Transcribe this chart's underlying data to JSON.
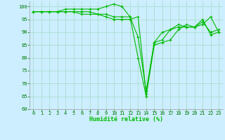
{
  "title": "",
  "xlabel": "Humidité relative (%)",
  "ylabel": "",
  "background_color": "#cceeff",
  "grid_color": "#aaddcc",
  "line_color": "#00bb00",
  "marker_color": "#00bb00",
  "xlim": [
    -0.5,
    23.5
  ],
  "ylim": [
    60,
    102
  ],
  "yticks": [
    60,
    65,
    70,
    75,
    80,
    85,
    90,
    95,
    100
  ],
  "xticks": [
    0,
    1,
    2,
    3,
    4,
    5,
    6,
    7,
    8,
    9,
    10,
    11,
    12,
    13,
    14,
    15,
    16,
    17,
    18,
    19,
    20,
    21,
    22,
    23
  ],
  "series": [
    [
      98,
      98,
      98,
      98,
      99,
      99,
      99,
      99,
      99,
      100,
      101,
      100,
      96,
      80,
      65,
      85,
      86,
      87,
      91,
      93,
      92,
      93,
      96,
      90
    ],
    [
      98,
      98,
      98,
      98,
      98,
      98,
      98,
      98,
      97,
      97,
      96,
      96,
      96,
      88,
      67,
      86,
      87,
      91,
      93,
      92,
      92,
      94,
      90,
      91
    ],
    [
      98,
      98,
      98,
      98,
      98,
      98,
      97,
      97,
      97,
      96,
      95,
      95,
      95,
      96,
      66,
      86,
      90,
      91,
      92,
      92,
      92,
      95,
      89,
      90
    ]
  ]
}
